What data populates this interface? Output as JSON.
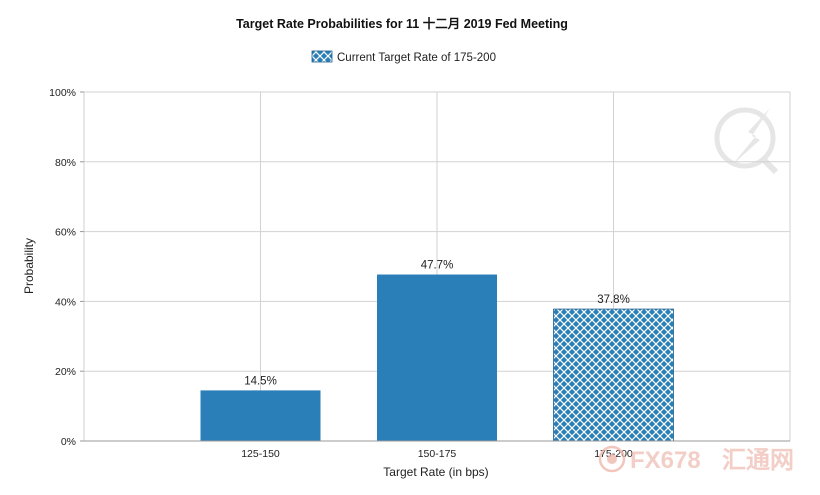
{
  "colors": {
    "bar": "#2a7fb9",
    "grid": "#d2d2d2",
    "axis": "#9a9a9a",
    "hatch_bg": "#2a7fb9",
    "hatch_line": "#ffffff"
  },
  "watermark": {
    "text": "FX678",
    "suffix": "汇通网"
  },
  "chart_data": {
    "type": "bar",
    "title": "Target Rate Probabilities for 11 十二月 2019 Fed Meeting",
    "legend": {
      "label": "Current Target Rate of 175-200",
      "placement": "top-center"
    },
    "xlabel": "Target Rate (in bps)",
    "ylabel": "Probability",
    "categories": [
      "125-150",
      "150-175",
      "175-200"
    ],
    "values": [
      14.5,
      47.7,
      37.8
    ],
    "data_labels": [
      "14.5%",
      "47.7%",
      "37.8%"
    ],
    "highlighted_category": "175-200",
    "ylim": [
      0,
      100
    ],
    "yticks": [
      "0%",
      "20%",
      "40%",
      "60%",
      "80%",
      "100%"
    ],
    "ytick_values": [
      0,
      20,
      40,
      60,
      80,
      100
    ],
    "grid": true
  }
}
